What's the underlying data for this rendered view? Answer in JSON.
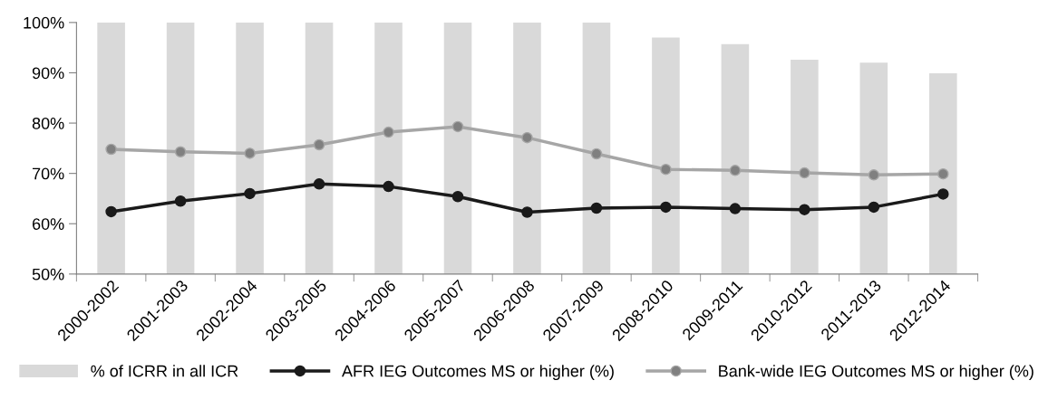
{
  "chart_data": {
    "type": "bar",
    "categories": [
      "2000-2002",
      "2001-2003",
      "2002-2004",
      "2003-2005",
      "2004-2006",
      "2005-2007",
      "2006-2008",
      "2007-2009",
      "2008-2010",
      "2009-2011",
      "2010-2012",
      "2011-2013",
      "2012-2014"
    ],
    "series": [
      {
        "name": "% of ICRR in all ICR",
        "color": "#d9d9d9",
        "values": [
          100,
          100,
          100,
          100,
          100,
          100,
          100,
          100,
          97.0,
          95.7,
          92.6,
          92.0,
          89.9
        ]
      },
      {
        "name": "AFR IEG Outcomes MS or higher (%)",
        "type": "line",
        "color": "#1a1a1a",
        "values": [
          62.4,
          64.5,
          66.0,
          67.9,
          67.4,
          65.4,
          62.3,
          63.1,
          63.3,
          63.0,
          62.8,
          63.3,
          65.9
        ]
      },
      {
        "name": "Bank-wide IEG Outcomes MS or higher (%)",
        "type": "line",
        "color": "#a6a6a6",
        "values": [
          74.8,
          74.3,
          74.0,
          75.7,
          78.2,
          79.3,
          77.1,
          73.9,
          70.8,
          70.6,
          70.1,
          69.7,
          69.9
        ]
      }
    ],
    "ylim": [
      50,
      100
    ],
    "yticks": [
      {
        "value": 50,
        "label": "50%"
      },
      {
        "value": 60,
        "label": "60%"
      },
      {
        "value": 70,
        "label": "70%"
      },
      {
        "value": 80,
        "label": "80%"
      },
      {
        "value": 90,
        "label": "90%"
      },
      {
        "value": 100,
        "label": "100%"
      }
    ],
    "marker": "circle",
    "legend": "bottom",
    "grid": false
  }
}
